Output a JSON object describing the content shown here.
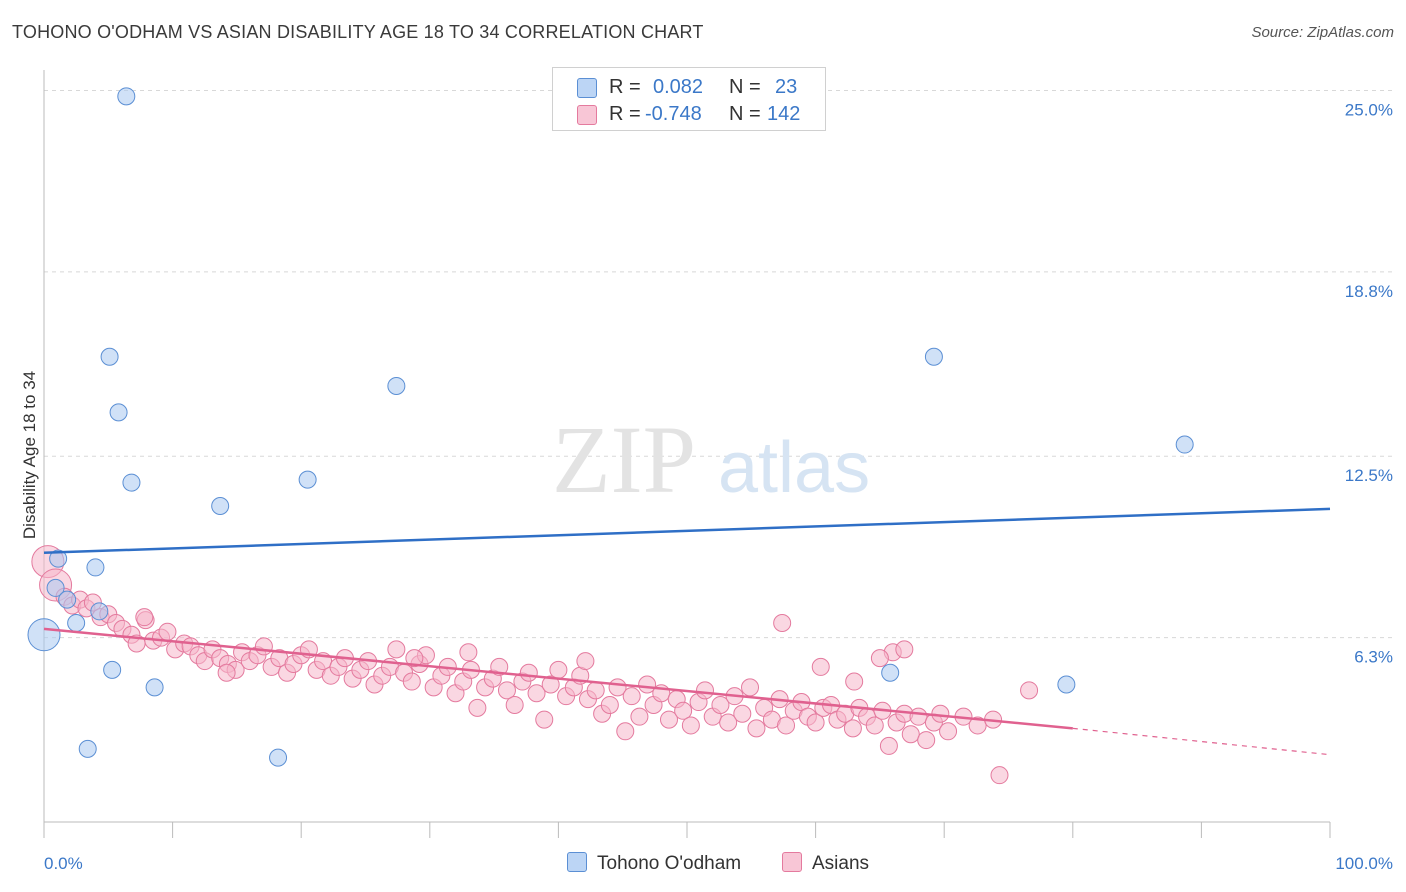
{
  "title": "TOHONO O'ODHAM VS ASIAN DISABILITY AGE 18 TO 34 CORRELATION CHART",
  "source": "Source: ZipAtlas.com",
  "watermark": {
    "zip": "ZIP",
    "atlas": "atlas"
  },
  "legend": {
    "rows": [
      {
        "r_label": "R =",
        "r_value": "0.082",
        "n_label": "N =",
        "n_value": "23"
      },
      {
        "r_label": "R =",
        "r_value": "-0.748",
        "n_label": "N =",
        "n_value": "142"
      }
    ]
  },
  "bottom_legend": {
    "series1": "Tohono O'odham",
    "series2": "Asians"
  },
  "colors": {
    "blue_fill": "#a9c8f0",
    "blue_stroke": "#5b8fd4",
    "blue_line": "#2f6fc6",
    "pink_fill": "#f5b6cb",
    "pink_stroke": "#e47a9e",
    "pink_line": "#e0618f",
    "tick_text": "#3b78c8",
    "grid": "#d8d8d8"
  },
  "chart_data": {
    "type": "scatter",
    "title": "TOHONO O'ODHAM VS ASIAN DISABILITY AGE 18 TO 34 CORRELATION CHART",
    "xlabel": "",
    "ylabel": "Disability Age 18 to 34",
    "xlim": [
      0,
      100
    ],
    "ylim": [
      0,
      25.7
    ],
    "x_tick_labels": [
      {
        "x": 0,
        "label": "0.0%"
      },
      {
        "x": 100,
        "label": "100.0%"
      }
    ],
    "y_ticks": [
      {
        "y": 6.3,
        "label": "6.3%"
      },
      {
        "y": 12.5,
        "label": "12.5%"
      },
      {
        "y": 18.8,
        "label": "18.8%"
      },
      {
        "y": 25.0,
        "label": "25.0%"
      }
    ],
    "grid": true,
    "legend_position": "top-center",
    "series": [
      {
        "name": "Tohono O'odham",
        "r": 0.082,
        "n": 23,
        "trend": {
          "x": [
            0,
            100
          ],
          "y": [
            9.2,
            10.7
          ]
        },
        "points": [
          {
            "x": 6.4,
            "y": 24.8
          },
          {
            "x": 5.1,
            "y": 15.9
          },
          {
            "x": 5.8,
            "y": 14.0
          },
          {
            "x": 27.4,
            "y": 14.9
          },
          {
            "x": 69.2,
            "y": 15.9
          },
          {
            "x": 88.7,
            "y": 12.9
          },
          {
            "x": 6.8,
            "y": 11.6
          },
          {
            "x": 20.5,
            "y": 11.7
          },
          {
            "x": 13.7,
            "y": 10.8
          },
          {
            "x": 4.0,
            "y": 8.7
          },
          {
            "x": 1.1,
            "y": 9.0
          },
          {
            "x": 0.9,
            "y": 8.0
          },
          {
            "x": 1.8,
            "y": 7.6
          },
          {
            "x": 4.3,
            "y": 7.2
          },
          {
            "x": 2.5,
            "y": 6.8
          },
          {
            "x": 0.0,
            "y": 6.4,
            "big": true
          },
          {
            "x": 5.3,
            "y": 5.2
          },
          {
            "x": 8.6,
            "y": 4.6
          },
          {
            "x": 65.8,
            "y": 5.1
          },
          {
            "x": 79.5,
            "y": 4.7
          },
          {
            "x": 3.4,
            "y": 2.5
          },
          {
            "x": 18.2,
            "y": 2.2
          }
        ]
      },
      {
        "name": "Asians",
        "r": -0.748,
        "n": 142,
        "trend": {
          "x": [
            0,
            80
          ],
          "y": [
            6.6,
            3.2
          ]
        },
        "trend_extrapolated": {
          "x": [
            80,
            100
          ],
          "y": [
            3.2,
            2.3
          ]
        },
        "points": [
          {
            "x": 0.3,
            "y": 8.9,
            "big": true
          },
          {
            "x": 0.9,
            "y": 8.1,
            "big": true
          },
          {
            "x": 1.6,
            "y": 7.7
          },
          {
            "x": 2.2,
            "y": 7.4
          },
          {
            "x": 2.8,
            "y": 7.6
          },
          {
            "x": 3.3,
            "y": 7.3
          },
          {
            "x": 3.8,
            "y": 7.5
          },
          {
            "x": 4.4,
            "y": 7.0
          },
          {
            "x": 5.0,
            "y": 7.1
          },
          {
            "x": 5.6,
            "y": 6.8
          },
          {
            "x": 6.1,
            "y": 6.6
          },
          {
            "x": 6.8,
            "y": 6.4
          },
          {
            "x": 7.2,
            "y": 6.1
          },
          {
            "x": 7.9,
            "y": 6.9
          },
          {
            "x": 8.5,
            "y": 6.2
          },
          {
            "x": 9.1,
            "y": 6.3
          },
          {
            "x": 9.6,
            "y": 6.5
          },
          {
            "x": 10.2,
            "y": 5.9
          },
          {
            "x": 10.9,
            "y": 6.1
          },
          {
            "x": 11.4,
            "y": 6.0
          },
          {
            "x": 12.0,
            "y": 5.7
          },
          {
            "x": 12.5,
            "y": 5.5
          },
          {
            "x": 13.1,
            "y": 5.9
          },
          {
            "x": 13.7,
            "y": 5.6
          },
          {
            "x": 14.3,
            "y": 5.4
          },
          {
            "x": 14.9,
            "y": 5.2
          },
          {
            "x": 15.4,
            "y": 5.8
          },
          {
            "x": 16.0,
            "y": 5.5
          },
          {
            "x": 16.6,
            "y": 5.7
          },
          {
            "x": 17.1,
            "y": 6.0
          },
          {
            "x": 17.7,
            "y": 5.3
          },
          {
            "x": 18.3,
            "y": 5.6
          },
          {
            "x": 18.9,
            "y": 5.1
          },
          {
            "x": 19.4,
            "y": 5.4
          },
          {
            "x": 20.0,
            "y": 5.7
          },
          {
            "x": 20.6,
            "y": 5.9
          },
          {
            "x": 21.2,
            "y": 5.2
          },
          {
            "x": 21.7,
            "y": 5.5
          },
          {
            "x": 22.3,
            "y": 5.0
          },
          {
            "x": 22.9,
            "y": 5.3
          },
          {
            "x": 23.4,
            "y": 5.6
          },
          {
            "x": 24.0,
            "y": 4.9
          },
          {
            "x": 24.6,
            "y": 5.2
          },
          {
            "x": 25.2,
            "y": 5.5
          },
          {
            "x": 25.7,
            "y": 4.7
          },
          {
            "x": 26.3,
            "y": 5.0
          },
          {
            "x": 26.9,
            "y": 5.3
          },
          {
            "x": 27.4,
            "y": 5.9
          },
          {
            "x": 28.0,
            "y": 5.1
          },
          {
            "x": 28.6,
            "y": 4.8
          },
          {
            "x": 29.2,
            "y": 5.4
          },
          {
            "x": 29.7,
            "y": 5.7
          },
          {
            "x": 30.3,
            "y": 4.6
          },
          {
            "x": 30.9,
            "y": 5.0
          },
          {
            "x": 31.4,
            "y": 5.3
          },
          {
            "x": 32.0,
            "y": 4.4
          },
          {
            "x": 32.6,
            "y": 4.8
          },
          {
            "x": 33.2,
            "y": 5.2
          },
          {
            "x": 33.7,
            "y": 3.9
          },
          {
            "x": 34.3,
            "y": 4.6
          },
          {
            "x": 34.9,
            "y": 4.9
          },
          {
            "x": 35.4,
            "y": 5.3
          },
          {
            "x": 36.0,
            "y": 4.5
          },
          {
            "x": 36.6,
            "y": 4.0
          },
          {
            "x": 37.2,
            "y": 4.8
          },
          {
            "x": 37.7,
            "y": 5.1
          },
          {
            "x": 38.3,
            "y": 4.4
          },
          {
            "x": 38.9,
            "y": 3.5
          },
          {
            "x": 39.4,
            "y": 4.7
          },
          {
            "x": 40.0,
            "y": 5.2
          },
          {
            "x": 40.6,
            "y": 4.3
          },
          {
            "x": 41.2,
            "y": 4.6
          },
          {
            "x": 41.7,
            "y": 5.0
          },
          {
            "x": 42.3,
            "y": 4.2
          },
          {
            "x": 42.9,
            "y": 4.5
          },
          {
            "x": 43.4,
            "y": 3.7
          },
          {
            "x": 44.0,
            "y": 4.0
          },
          {
            "x": 44.6,
            "y": 4.6
          },
          {
            "x": 45.2,
            "y": 3.1
          },
          {
            "x": 45.7,
            "y": 4.3
          },
          {
            "x": 46.3,
            "y": 3.6
          },
          {
            "x": 46.9,
            "y": 4.7
          },
          {
            "x": 47.4,
            "y": 4.0
          },
          {
            "x": 48.0,
            "y": 4.4
          },
          {
            "x": 48.6,
            "y": 3.5
          },
          {
            "x": 49.2,
            "y": 4.2
          },
          {
            "x": 49.7,
            "y": 3.8
          },
          {
            "x": 50.3,
            "y": 3.3
          },
          {
            "x": 50.9,
            "y": 4.1
          },
          {
            "x": 51.4,
            "y": 4.5
          },
          {
            "x": 52.0,
            "y": 3.6
          },
          {
            "x": 52.6,
            "y": 4.0
          },
          {
            "x": 53.2,
            "y": 3.4
          },
          {
            "x": 53.7,
            "y": 4.3
          },
          {
            "x": 54.3,
            "y": 3.7
          },
          {
            "x": 54.9,
            "y": 4.6
          },
          {
            "x": 55.4,
            "y": 3.2
          },
          {
            "x": 56.0,
            "y": 3.9
          },
          {
            "x": 56.6,
            "y": 3.5
          },
          {
            "x": 57.2,
            "y": 4.2
          },
          {
            "x": 57.7,
            "y": 3.3
          },
          {
            "x": 58.3,
            "y": 3.8
          },
          {
            "x": 58.9,
            "y": 4.1
          },
          {
            "x": 59.4,
            "y": 3.6
          },
          {
            "x": 60.0,
            "y": 3.4
          },
          {
            "x": 60.6,
            "y": 3.9
          },
          {
            "x": 61.2,
            "y": 4.0
          },
          {
            "x": 61.7,
            "y": 3.5
          },
          {
            "x": 62.3,
            "y": 3.7
          },
          {
            "x": 62.9,
            "y": 3.2
          },
          {
            "x": 63.4,
            "y": 3.9
          },
          {
            "x": 64.0,
            "y": 3.6
          },
          {
            "x": 64.6,
            "y": 3.3
          },
          {
            "x": 65.2,
            "y": 3.8
          },
          {
            "x": 65.7,
            "y": 2.6
          },
          {
            "x": 66.3,
            "y": 3.4
          },
          {
            "x": 66.9,
            "y": 3.7
          },
          {
            "x": 67.4,
            "y": 3.0
          },
          {
            "x": 68.0,
            "y": 3.6
          },
          {
            "x": 68.6,
            "y": 2.8
          },
          {
            "x": 69.2,
            "y": 3.4
          },
          {
            "x": 69.7,
            "y": 3.7
          },
          {
            "x": 70.3,
            "y": 3.1
          },
          {
            "x": 71.5,
            "y": 3.6
          },
          {
            "x": 72.6,
            "y": 3.3
          },
          {
            "x": 73.8,
            "y": 3.5
          },
          {
            "x": 74.3,
            "y": 1.6
          },
          {
            "x": 76.6,
            "y": 4.5
          },
          {
            "x": 57.4,
            "y": 6.8
          },
          {
            "x": 66.0,
            "y": 5.8
          },
          {
            "x": 65.0,
            "y": 5.6
          },
          {
            "x": 7.8,
            "y": 7.0
          },
          {
            "x": 14.2,
            "y": 5.1
          },
          {
            "x": 28.8,
            "y": 5.6
          },
          {
            "x": 33.0,
            "y": 5.8
          },
          {
            "x": 42.1,
            "y": 5.5
          },
          {
            "x": 60.4,
            "y": 5.3
          },
          {
            "x": 63.0,
            "y": 4.8
          },
          {
            "x": 66.9,
            "y": 5.9
          }
        ]
      }
    ]
  }
}
